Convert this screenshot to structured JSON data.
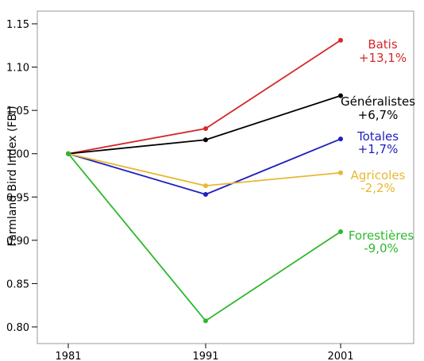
{
  "chart_data": {
    "type": "line",
    "title": "",
    "xlabel": "",
    "ylabel": "Farmland Bird Index (FBI)",
    "x": [
      "1981",
      "1991",
      "2001"
    ],
    "ylim": [
      0.79,
      1.17
    ],
    "yticks": [
      "0.80",
      "0.85",
      "0.90",
      "0.95",
      "1.00",
      "1.05",
      "1.10",
      "1.15"
    ],
    "grid": false,
    "series": [
      {
        "name": "Batis",
        "change": "+13,1%",
        "color": "#d62728",
        "values": [
          1.0,
          1.029,
          1.131
        ]
      },
      {
        "name": "Généralistes",
        "change": "+6,7%",
        "color": "#000000",
        "values": [
          1.0,
          1.016,
          1.067
        ]
      },
      {
        "name": "Totales",
        "change": "+1,7%",
        "color": "#1f1fbf",
        "values": [
          1.0,
          0.953,
          1.017
        ]
      },
      {
        "name": "Agricoles",
        "change": "-2,2%",
        "color": "#e8b830",
        "values": [
          1.0,
          0.963,
          0.978
        ]
      },
      {
        "name": "Forestières",
        "change": "-9,0%",
        "color": "#2db82d",
        "values": [
          1.0,
          0.807,
          0.91
        ]
      }
    ]
  }
}
